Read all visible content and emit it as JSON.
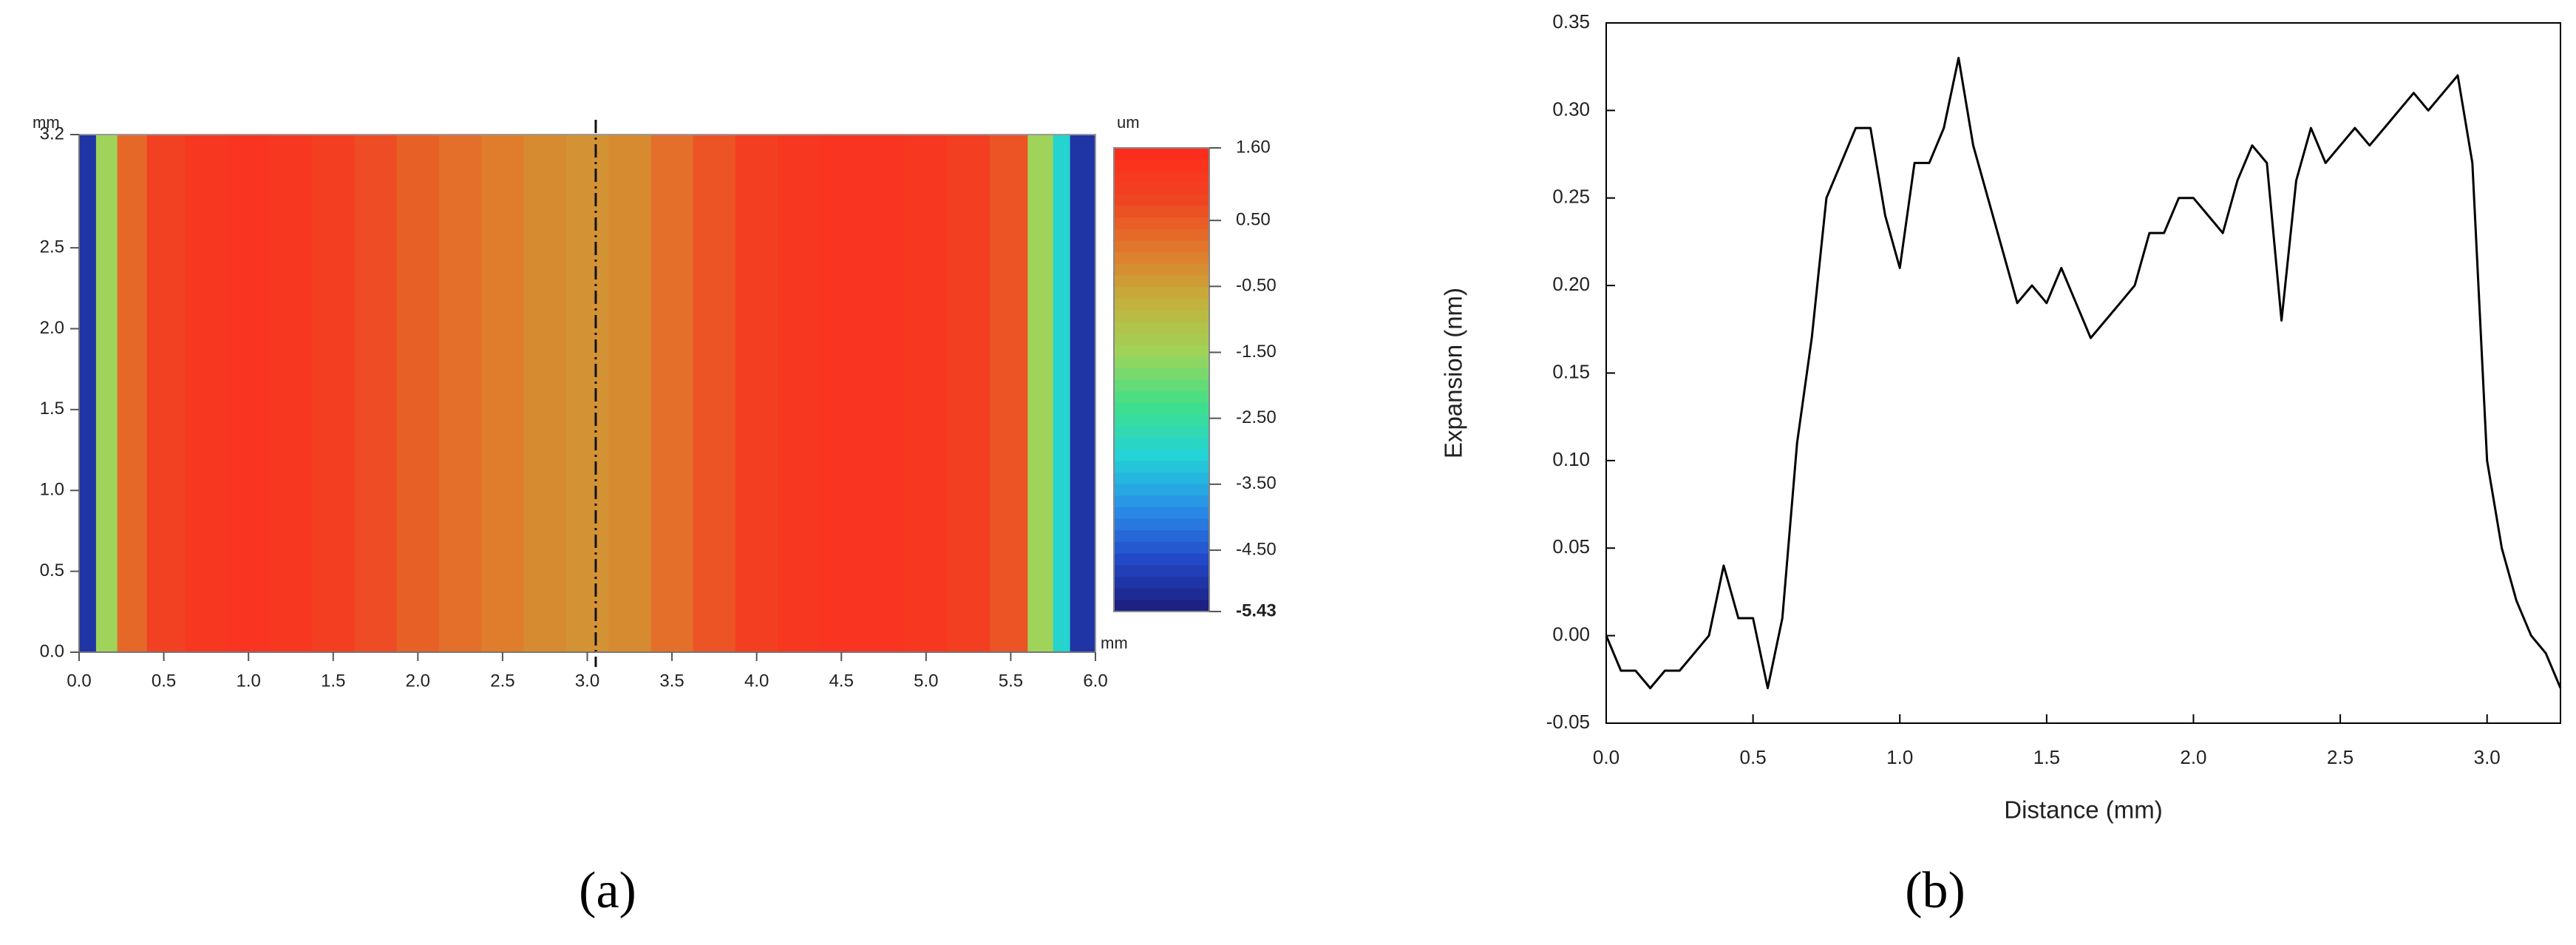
{
  "chart_data": [
    {
      "type": "heatmap",
      "caption": "(a)",
      "x_label": "mm",
      "y_label": "mm",
      "colorbar_label": "um",
      "x": [
        0.05,
        0.15,
        0.3,
        0.5,
        0.75,
        1.0,
        1.25,
        1.5,
        1.75,
        2.0,
        2.25,
        2.5,
        2.75,
        3.0,
        3.25,
        3.5,
        3.75,
        4.0,
        4.25,
        4.5,
        4.75,
        5.0,
        5.25,
        5.5,
        5.7,
        5.8,
        5.9
      ],
      "values": [
        -5.0,
        -1.5,
        0.3,
        0.9,
        1.2,
        1.3,
        1.2,
        1.0,
        0.7,
        0.4,
        0.2,
        0.0,
        -0.2,
        -0.3,
        -0.2,
        0.2,
        0.6,
        1.0,
        1.2,
        1.3,
        1.3,
        1.2,
        1.0,
        0.6,
        -1.5,
        -3.0,
        -5.0
      ],
      "cut_line_x": 3.05,
      "xlim": [
        0,
        6
      ],
      "ylim": [
        0,
        3.2
      ],
      "zlim": [
        -5.43,
        1.6
      ],
      "xticks": [
        {
          "value": 0,
          "label": "0.0"
        },
        0.5,
        {
          "value": 1,
          "label": "1.0"
        },
        1.5,
        {
          "value": 2,
          "label": "2.0"
        },
        2.5,
        {
          "value": 3,
          "label": "3.0"
        },
        3.5,
        {
          "value": 4,
          "label": "4.0"
        },
        4.5,
        {
          "value": 5,
          "label": "5.0"
        },
        5.5,
        {
          "value": 6,
          "label": "6.0"
        }
      ],
      "yticks": [
        {
          "value": 0,
          "label": "0.0"
        },
        0.5,
        {
          "value": 1,
          "label": "1.0"
        },
        1.5,
        {
          "value": 2,
          "label": "2.0"
        },
        2.5,
        3.2
      ],
      "colorbar_ticks": [
        {
          "value": 1.6,
          "label": "1.60"
        },
        {
          "value": 0.5,
          "label": "0.50"
        },
        {
          "value": -0.5,
          "label": "-0.50"
        },
        {
          "value": -1.5,
          "label": "-1.50"
        },
        {
          "value": -2.5,
          "label": "-2.50"
        },
        {
          "value": -3.5,
          "label": "-3.50"
        },
        {
          "value": -4.5,
          "label": "-4.50"
        },
        -5.43
      ],
      "colorscale": [
        "#1c1c7a",
        "#2248c8",
        "#2a8ee8",
        "#22d2d8",
        "#3ee08a",
        "#9ed45a",
        "#c2b23c",
        "#e07a2c",
        "#f04422",
        "#ff2a1e"
      ]
    },
    {
      "type": "line",
      "caption": "(b)",
      "x_label": "Distance (mm)",
      "y_label": "Expansion (nm)",
      "color": "#000000",
      "x": [
        0.0,
        0.05,
        0.1,
        0.15,
        0.2,
        0.25,
        0.3,
        0.35,
        0.4,
        0.45,
        0.5,
        0.55,
        0.6,
        0.65,
        0.7,
        0.75,
        0.8,
        0.85,
        0.9,
        0.95,
        1.0,
        1.05,
        1.1,
        1.15,
        1.2,
        1.25,
        1.3,
        1.35,
        1.4,
        1.45,
        1.5,
        1.55,
        1.6,
        1.65,
        1.7,
        1.75,
        1.8,
        1.85,
        1.9,
        1.95,
        2.0,
        2.05,
        2.1,
        2.15,
        2.2,
        2.25,
        2.3,
        2.35,
        2.4,
        2.45,
        2.5,
        2.55,
        2.6,
        2.65,
        2.7,
        2.75,
        2.8,
        2.85,
        2.9,
        2.95,
        3.0,
        3.05,
        3.1,
        3.15,
        3.2,
        3.25
      ],
      "values": [
        0.0,
        -0.02,
        -0.02,
        -0.03,
        -0.02,
        -0.02,
        -0.01,
        0.0,
        0.04,
        0.01,
        0.01,
        -0.03,
        0.01,
        0.11,
        0.17,
        0.25,
        0.27,
        0.29,
        0.29,
        0.24,
        0.21,
        0.27,
        0.27,
        0.29,
        0.33,
        0.28,
        0.25,
        0.22,
        0.19,
        0.2,
        0.19,
        0.21,
        0.19,
        0.17,
        0.18,
        0.19,
        0.2,
        0.23,
        0.23,
        0.25,
        0.25,
        0.24,
        0.23,
        0.26,
        0.28,
        0.27,
        0.18,
        0.26,
        0.29,
        0.27,
        0.28,
        0.29,
        0.28,
        0.29,
        0.3,
        0.31,
        0.3,
        0.31,
        0.32,
        0.27,
        0.1,
        0.05,
        0.02,
        0.0,
        -0.01,
        -0.03
      ],
      "xlim": [
        0,
        3.25
      ],
      "ylim": [
        -0.05,
        0.35
      ],
      "xticks": [
        {
          "value": 0,
          "label": "0.0"
        },
        0.5,
        {
          "value": 1,
          "label": "1.0"
        },
        1.5,
        {
          "value": 2,
          "label": "2.0"
        },
        2.5,
        {
          "value": 3,
          "label": "3.0"
        }
      ],
      "yticks": [
        -0.05,
        {
          "value": 0,
          "label": "0.00"
        },
        0.05,
        {
          "value": 0.1,
          "label": "0.10"
        },
        0.15,
        {
          "value": 0.2,
          "label": "0.20"
        },
        0.25,
        {
          "value": 0.3,
          "label": "0.30"
        },
        0.35
      ]
    }
  ]
}
